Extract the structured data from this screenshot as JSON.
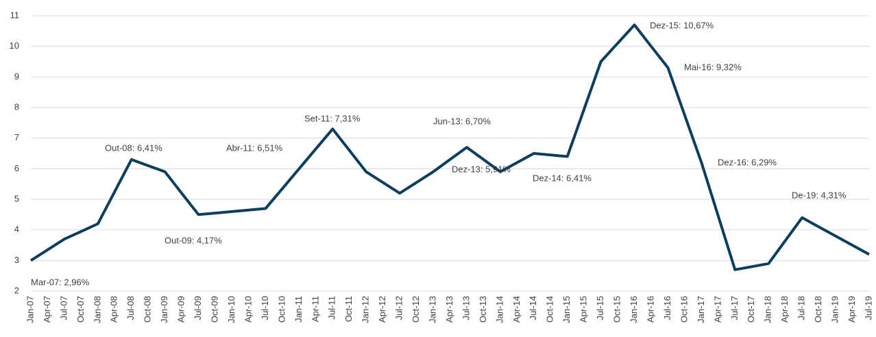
{
  "chart_data": {
    "type": "line",
    "categories": [
      "Jan-07",
      "Apr-07",
      "Jul-07",
      "Oct-07",
      "Jan-08",
      "Apr-08",
      "Jul-08",
      "Oct-08",
      "Jan-09",
      "Apr-09",
      "Jul-09",
      "Oct-09",
      "Jan-10",
      "Apr-10",
      "Jul-10",
      "Oct-10",
      "Jan-11",
      "Apr-11",
      "Jul-11",
      "Oct-11",
      "Jan-12",
      "Apr-12",
      "Jul-12",
      "Oct-12",
      "Jan-13",
      "Apr-13",
      "Jul-13",
      "Oct-13",
      "Jan-14",
      "Apr-14",
      "Jul-14",
      "Oct-14",
      "Jan-15",
      "Apr-15",
      "Jul-15",
      "Oct-15",
      "Jan-16",
      "Apr-16",
      "Jul-16",
      "Oct-16",
      "Jan-17",
      "Apr-17",
      "Jul-17",
      "Oct-17",
      "Jan-18",
      "Apr-18",
      "Jul-18",
      "Oct-18",
      "Jan-19",
      "Apr-19",
      "Jul-19"
    ],
    "values": [
      3.0,
      3.35,
      3.7,
      3.95,
      4.2,
      5.25,
      6.3,
      6.1,
      5.9,
      5.2,
      4.5,
      4.55,
      4.6,
      4.65,
      4.7,
      5.35,
      6.0,
      6.65,
      7.3,
      6.6,
      5.9,
      5.55,
      5.2,
      5.55,
      5.9,
      6.3,
      6.7,
      6.3,
      5.9,
      6.2,
      6.5,
      6.45,
      6.4,
      7.95,
      9.5,
      10.1,
      10.7,
      10.0,
      9.3,
      7.75,
      6.2,
      4.45,
      2.7,
      2.8,
      2.9,
      3.65,
      4.4,
      4.1,
      3.8,
      3.5,
      3.2
    ],
    "color": "#0b3d5e",
    "ylim": [
      2,
      11
    ],
    "yticks": [
      2,
      3,
      4,
      5,
      6,
      7,
      8,
      9,
      10,
      11
    ],
    "grid": true,
    "annotations": [
      "Mar-07: 2,96%",
      "Out-08: 6,41%",
      "Out-09: 4,17%",
      "Abr-11: 6,51%",
      "Set-11: 7,31%",
      "Jun-13: 6,70%",
      "Dez-13: 5,91%",
      "Dez-14: 6,41%",
      "Dez-15: 10,67%",
      "Mai-16: 9,32%",
      "Dez-16: 6,29%",
      "De-19: 4,31%"
    ]
  }
}
